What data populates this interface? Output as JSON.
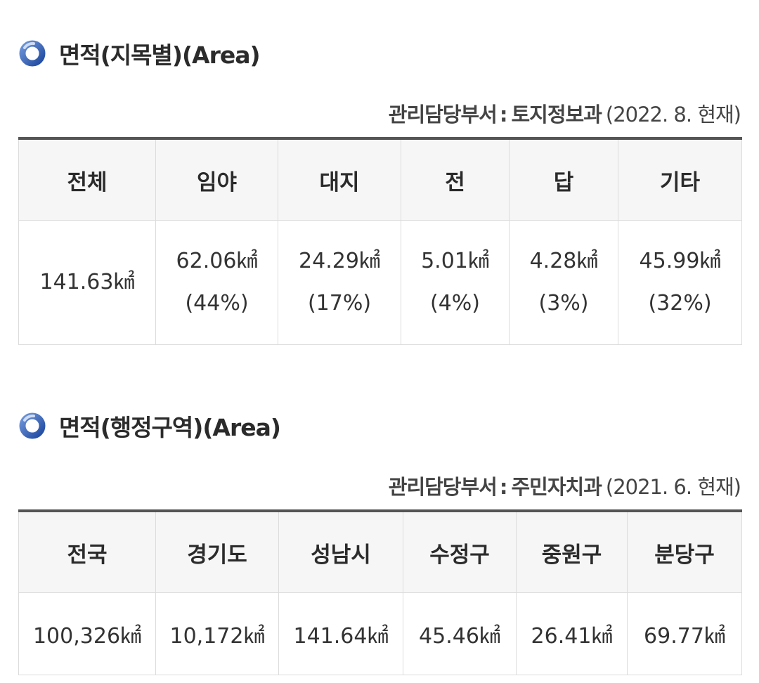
{
  "area_by_land_type": {
    "heading": "면적(지목별)(Area)",
    "icon": "ring-icon",
    "dept_label": "관리담당부서",
    "dept_sep": ":",
    "dept_name": "토지정보과",
    "dept_date": "(2022. 8. 현재)",
    "columns": [
      "전체",
      "임야",
      "대지",
      "전",
      "답",
      "기타"
    ],
    "values": [
      "141.63㎢",
      "62.06㎢",
      "24.29㎢",
      "5.01㎢",
      "4.28㎢",
      "45.99㎢"
    ],
    "percents": [
      "",
      "(44%)",
      "(17%)",
      "(4%)",
      "(3%)",
      "(32%)"
    ]
  },
  "area_by_admin": {
    "heading": "면적(행정구역)(Area)",
    "icon": "ring-icon",
    "dept_label": "관리담당부서",
    "dept_sep": ":",
    "dept_name": "주민자치과",
    "dept_date": "(2021. 6. 현재)",
    "columns": [
      "전국",
      "경기도",
      "성남시",
      "수정구",
      "중원구",
      "분당구"
    ],
    "values": [
      "100,326㎢",
      "10,172㎢",
      "141.64㎢",
      "45.46㎢",
      "26.41㎢",
      "69.77㎢"
    ]
  },
  "colors": {
    "accent_blue": "#2f5fb3",
    "header_border": "#555555",
    "cell_border": "#dcdcdc",
    "header_bg": "#f6f6f6"
  }
}
